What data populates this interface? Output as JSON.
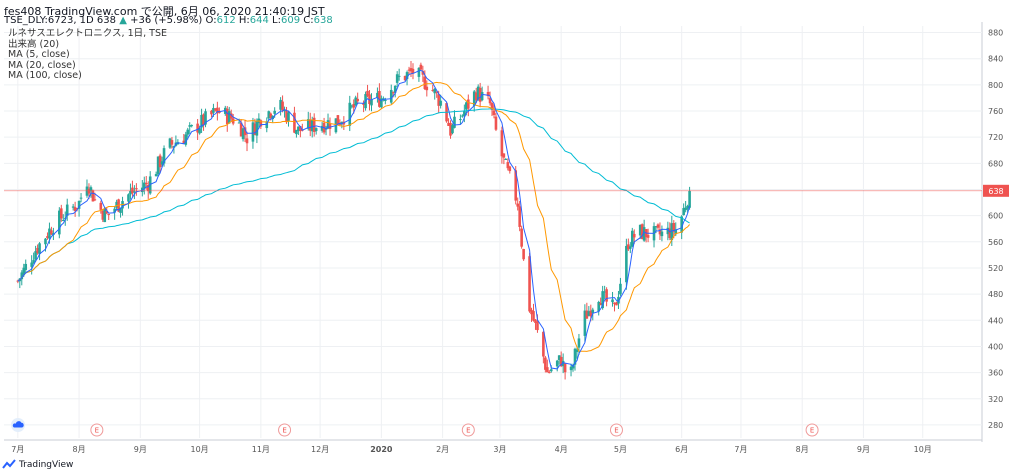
{
  "header": {
    "line1": "fes408 TradingView.com で公開, 6月 06, 2020 21:40:19 JST",
    "ticker": "TSE_DLY:6723, 1D 638",
    "change": "+36 (+5.98%)",
    "o_label": "O:",
    "o_value": "612",
    "h_label": "H:",
    "h_value": "644",
    "l_label": "L:",
    "l_value": "609",
    "c_label": "C:",
    "c_value": "638"
  },
  "legend": [
    "ルネサスエレクトロニクス, 1日, TSE",
    "出来高 (20)",
    "MA (5, close)",
    "MA (20, close)",
    "MA (100, close)"
  ],
  "footer": {
    "brand": "TradingView"
  },
  "colors": {
    "up": "#26a69a",
    "down": "#ef5350",
    "ma5": "#2962ff",
    "ma20": "#ff9800",
    "ma100": "#00bcd4",
    "price_line": "#ef5350",
    "grid": "#eef0f3",
    "axis_text": "#555555"
  },
  "chart_data": {
    "type": "candlestick",
    "y_axis": {
      "min": 260,
      "max": 890,
      "ticks": [
        280,
        320,
        360,
        400,
        440,
        480,
        520,
        560,
        600,
        640,
        680,
        720,
        760,
        800,
        840,
        880
      ],
      "position": "right"
    },
    "x_ticks": [
      "7月",
      "8月",
      "9月",
      "10月",
      "11月",
      "12月",
      "2020",
      "2月",
      "3月",
      "4月",
      "5月",
      "6月",
      "7月",
      "8月",
      "9月",
      "10月"
    ],
    "earnings_markers": [
      "E",
      "E",
      "E",
      "E",
      "E"
    ],
    "last_price": {
      "label": "638",
      "value": 638
    },
    "ohlc_path": [
      [
        "2019-07-01",
        500
      ],
      [
        "2019-07-10",
        548
      ],
      [
        "2019-07-20",
        590
      ],
      [
        "2019-08-01",
        620
      ],
      [
        "2019-08-05",
        655
      ],
      [
        "2019-08-10",
        615
      ],
      [
        "2019-08-15",
        600
      ],
      [
        "2019-08-25",
        630
      ],
      [
        "2019-09-05",
        650
      ],
      [
        "2019-09-15",
        705
      ],
      [
        "2019-09-25",
        725
      ],
      [
        "2019-10-01",
        740
      ],
      [
        "2019-10-10",
        760
      ],
      [
        "2019-10-20",
        745
      ],
      [
        "2019-10-25",
        720
      ],
      [
        "2019-11-01",
        750
      ],
      [
        "2019-11-10",
        770
      ],
      [
        "2019-11-20",
        730
      ],
      [
        "2019-12-01",
        740
      ],
      [
        "2019-12-10",
        745
      ],
      [
        "2019-12-20",
        770
      ],
      [
        "2020-01-01",
        780
      ],
      [
        "2020-01-10",
        810
      ],
      [
        "2020-01-17",
        820
      ],
      [
        "2020-01-25",
        800
      ],
      [
        "2020-02-01",
        770
      ],
      [
        "2020-02-05",
        730
      ],
      [
        "2020-02-10",
        750
      ],
      [
        "2020-02-18",
        790
      ],
      [
        "2020-02-25",
        770
      ],
      [
        "2020-03-01",
        700
      ],
      [
        "2020-03-10",
        620
      ],
      [
        "2020-03-15",
        470
      ],
      [
        "2020-03-20",
        420
      ],
      [
        "2020-03-25",
        360
      ],
      [
        "2020-04-01",
        380
      ],
      [
        "2020-04-05",
        345
      ],
      [
        "2020-04-12",
        440
      ],
      [
        "2020-04-20",
        480
      ],
      [
        "2020-04-28",
        455
      ],
      [
        "2020-05-05",
        560
      ],
      [
        "2020-05-10",
        575
      ],
      [
        "2020-05-20",
        570
      ],
      [
        "2020-05-30",
        580
      ],
      [
        "2020-06-05",
        638
      ]
    ],
    "series": [
      {
        "name": "MA (5, close)"
      },
      {
        "name": "MA (20, close)"
      },
      {
        "name": "MA (100, close)"
      }
    ]
  }
}
